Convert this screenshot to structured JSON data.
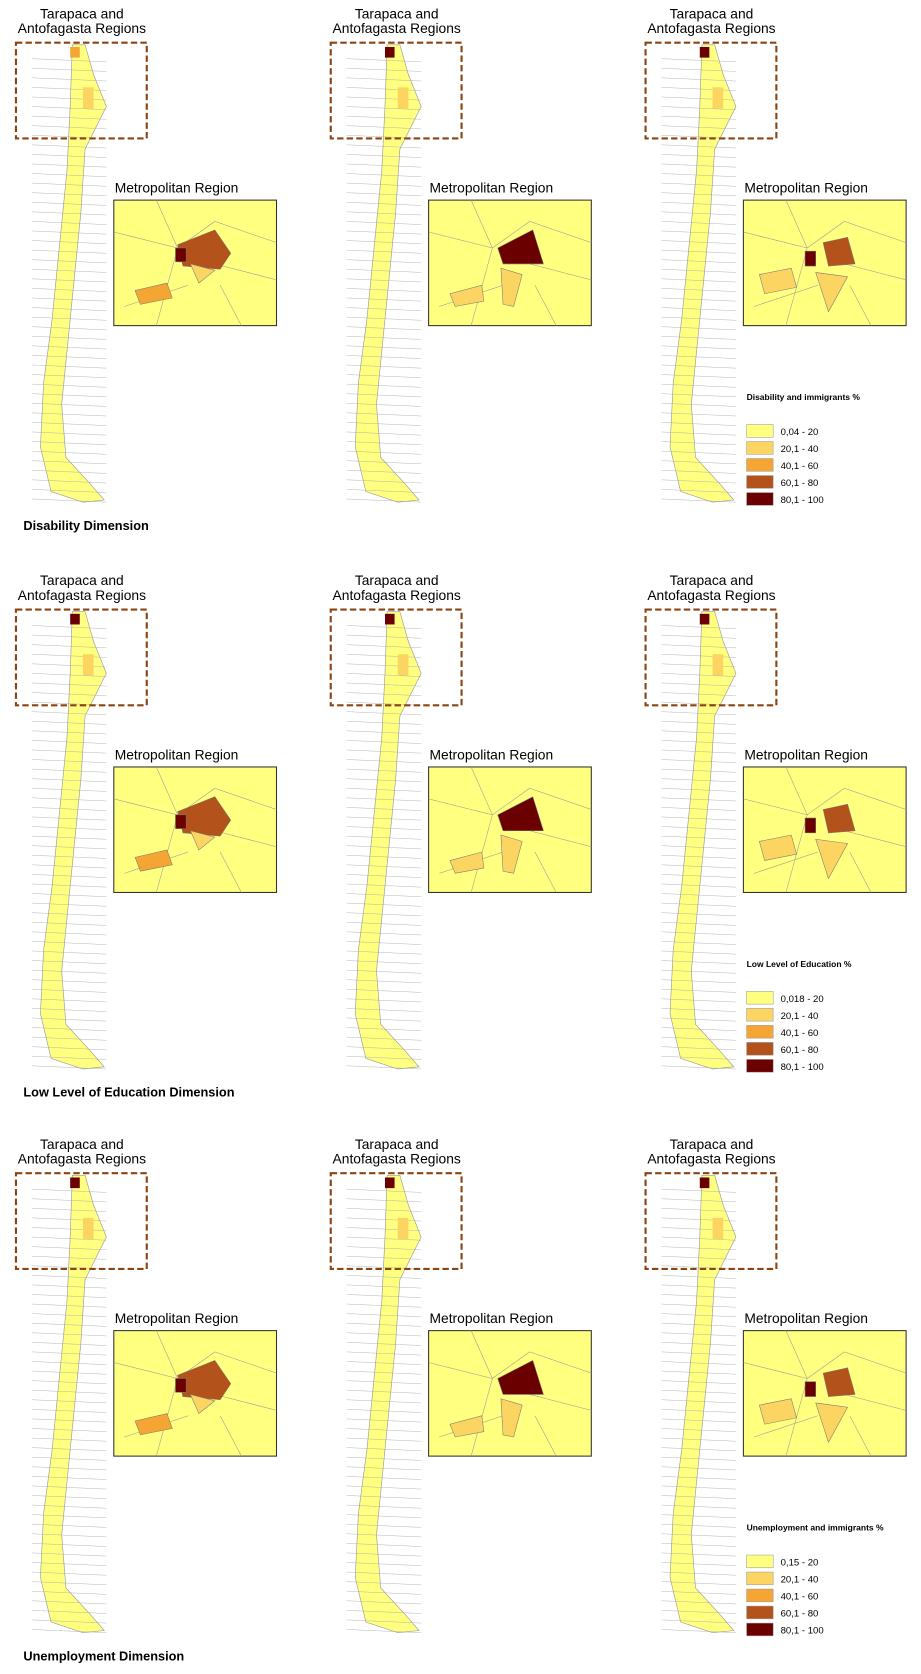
{
  "rows": [
    {
      "dimension": "Disability Dimension",
      "legend": {
        "title": "Disability and immigrants %",
        "items": [
          "0,04 - 20",
          "20,1 - 40",
          "40,1 - 60",
          "60,1 - 80",
          "80,1 - 100"
        ],
        "colors": [
          "#ffff80",
          "#fcd462",
          "#f4a534",
          "#b4521b",
          "#6b0000"
        ]
      },
      "panels": [
        {
          "north_label": [
            "Tarapaca and",
            "Antofagasta Regions"
          ],
          "metro_label": "Metropolitan Region"
        },
        {
          "north_label": [
            "Tarapaca and",
            "Antofagasta Regions"
          ],
          "metro_label": "Metropolitan Region"
        },
        {
          "north_label": [
            "Tarapaca and",
            "Antofagasta Regions"
          ],
          "metro_label": "Metropolitan Region"
        }
      ]
    },
    {
      "dimension": "Low Level of Education Dimension",
      "legend": {
        "title": "Low Level of Education %",
        "items": [
          "0,018 - 20",
          "20,1 - 40",
          "40,1 - 60",
          "60,1 - 80",
          "80,1 - 100"
        ],
        "colors": [
          "#ffff80",
          "#fcd462",
          "#f4a534",
          "#b4521b",
          "#6b0000"
        ]
      },
      "panels": [
        {
          "north_label": [
            "Tarapaca and",
            "Antofagasta Regions"
          ],
          "metro_label": "Metropolitan Region"
        },
        {
          "north_label": [
            "Tarapaca and",
            "Antofagasta Regions"
          ],
          "metro_label": "Metropolitan Region"
        },
        {
          "north_label": [
            "Tarapaca and",
            "Antofagasta Regions"
          ],
          "metro_label": "Metropolitan Region"
        }
      ]
    },
    {
      "dimension": "Unemployment Dimension",
      "legend": {
        "title": "Unemployment and immigrants %",
        "items": [
          "0,15 - 20",
          "20,1 - 40",
          "40,1 - 60",
          "60,1 - 80",
          "80,1 - 100"
        ],
        "colors": [
          "#ffff80",
          "#fcd462",
          "#f4a534",
          "#b4521b",
          "#6b0000"
        ]
      },
      "panels": [
        {
          "north_label": [
            "Tarapaca and",
            "Antofagasta Regions"
          ],
          "metro_label": "Metropolitan Region"
        },
        {
          "north_label": [
            "Tarapaca and",
            "Antofagasta Regions"
          ],
          "metro_label": "Metropolitan Region"
        },
        {
          "north_label": [
            "Tarapaca and",
            "Antofagasta Regions"
          ],
          "metro_label": "Metropolitan Region"
        }
      ]
    }
  ]
}
